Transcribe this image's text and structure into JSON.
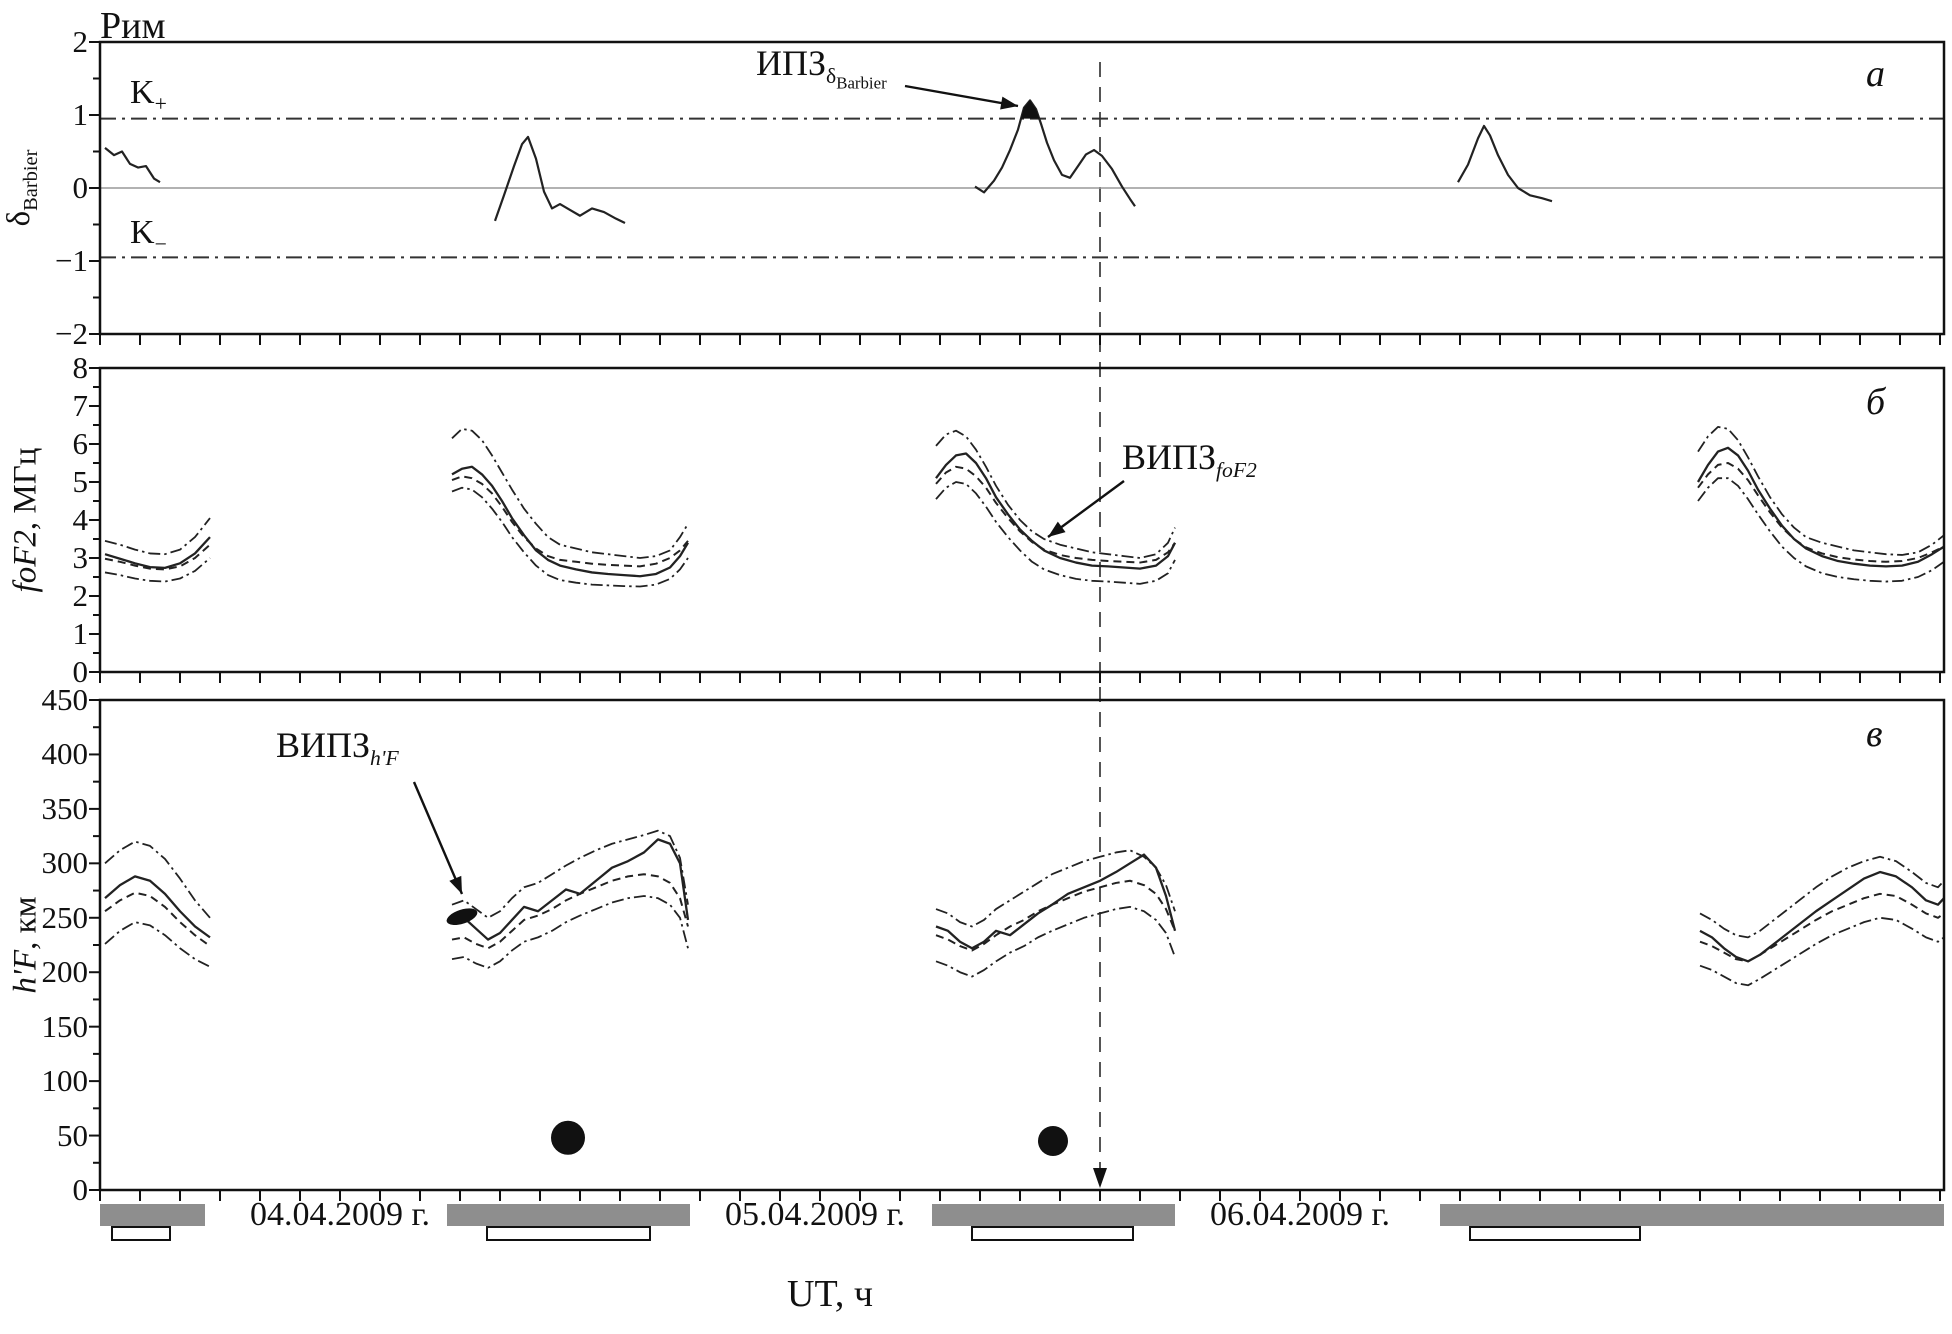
{
  "chart_data": {
    "type": "line",
    "title": "Рим",
    "xlabel": "UT, ч",
    "x_axis": {
      "unit": "часы UT, от 00:00 04.04.2009",
      "range_hours": [
        0,
        92
      ],
      "tick_step_hours": 2,
      "date_labels": [
        {
          "label": "04.04.2009 г.",
          "t_center": 12
        },
        {
          "label": "05.04.2009 г.",
          "t_center": 35.75
        },
        {
          "label": "06.04.2009 г.",
          "t_center": 60
        }
      ]
    },
    "event_marker": {
      "t": 50,
      "style": "vertical-dashed-with-arrow"
    },
    "night_bars": [
      {
        "t0": 0,
        "t1": 5.25
      },
      {
        "t0": 17.35,
        "t1": 29.5
      },
      {
        "t0": 41.6,
        "t1": 53.75
      },
      {
        "t0": 67.0,
        "t1": 92.2
      }
    ],
    "reference_bars": [
      {
        "t0": 0.6,
        "t1": 3.5
      },
      {
        "t0": 19.35,
        "t1": 27.5
      },
      {
        "t0": 43.6,
        "t1": 51.65
      },
      {
        "t0": 68.5,
        "t1": 77.0
      }
    ],
    "panels": {
      "a": {
        "letter": "а",
        "ylabel": {
          "symbol": "δ",
          "sub": "Barbier"
        },
        "ylim": [
          -2,
          2
        ],
        "ytick_step": 1,
        "thresholds": {
          "k_plus": 0.95,
          "k_minus": -0.95,
          "k_plus_label": {
            "base": "K",
            "sub": "+"
          },
          "k_minus_label": {
            "base": "K",
            "sub": "−"
          }
        },
        "annotation": {
          "base": "ИПЗ",
          "sub_symbol": "δ",
          "sub_sub": "Barbier"
        },
        "filled_exceedance_segment": 2,
        "segments": [
          {
            "t": [
              0.25,
              0.7,
              1.1,
              1.5,
              1.9,
              2.3,
              2.7,
              3.0
            ],
            "v": [
              0.55,
              0.45,
              0.5,
              0.33,
              0.28,
              0.3,
              0.13,
              0.08
            ]
          },
          {
            "t": [
              19.75,
              20.2,
              20.7,
              21.1,
              21.4,
              21.8,
              22.2,
              22.6,
              23.0,
              23.5,
              24.0,
              24.6,
              25.2,
              25.8,
              26.25
            ],
            "v": [
              -0.45,
              -0.1,
              0.3,
              0.6,
              0.7,
              0.4,
              -0.05,
              -0.28,
              -0.22,
              -0.3,
              -0.38,
              -0.28,
              -0.33,
              -0.42,
              -0.48
            ]
          },
          {
            "t": [
              43.75,
              44.2,
              44.7,
              45.1,
              45.5,
              45.9,
              46.2,
              46.5,
              46.8,
              47.05,
              47.35,
              47.7,
              48.1,
              48.5,
              48.9,
              49.3,
              49.7,
              50.1,
              50.6,
              51.1,
              51.5,
              51.75
            ],
            "v": [
              0.02,
              -0.06,
              0.1,
              0.28,
              0.52,
              0.8,
              1.1,
              1.2,
              1.08,
              0.88,
              0.62,
              0.38,
              0.18,
              0.14,
              0.3,
              0.46,
              0.52,
              0.44,
              0.26,
              0.02,
              -0.15,
              -0.25
            ]
          },
          {
            "t": [
              67.9,
              68.4,
              68.9,
              69.2,
              69.5,
              69.9,
              70.4,
              70.9,
              71.5,
              72.1,
              72.6
            ],
            "v": [
              0.08,
              0.32,
              0.68,
              0.85,
              0.72,
              0.45,
              0.18,
              0.0,
              -0.1,
              -0.14,
              -0.18
            ]
          }
        ]
      },
      "b": {
        "letter": "б",
        "ylabel": {
          "var": "foF2",
          "unit": ", МГц"
        },
        "ylim": [
          0,
          8
        ],
        "ytick_step": 1,
        "annotation": {
          "base": "ВИПЗ",
          "sub": "foF2"
        },
        "chunks": [
          {
            "t": [
              0.25,
              1.0,
              1.75,
              2.5,
              3.25,
              4.0,
              4.75,
              5.5
            ],
            "upper": [
              3.45,
              3.35,
              3.22,
              3.12,
              3.1,
              3.22,
              3.55,
              4.05
            ],
            "observed": [
              3.1,
              2.98,
              2.86,
              2.76,
              2.74,
              2.86,
              3.12,
              3.55
            ],
            "median": [
              2.98,
              2.9,
              2.8,
              2.72,
              2.7,
              2.78,
              3.0,
              3.35
            ],
            "lower": [
              2.62,
              2.55,
              2.46,
              2.4,
              2.38,
              2.46,
              2.66,
              3.0
            ]
          },
          {
            "t": [
              17.6,
              18.1,
              18.6,
              19.1,
              19.6,
              20.1,
              20.6,
              21.2,
              21.8,
              22.4,
              23.0,
              23.8,
              24.6,
              25.4,
              26.2,
              27.0,
              27.8,
              28.5,
              29.0,
              29.4
            ],
            "upper": [
              6.15,
              6.4,
              6.35,
              6.1,
              5.7,
              5.25,
              4.8,
              4.3,
              3.9,
              3.55,
              3.35,
              3.25,
              3.15,
              3.1,
              3.05,
              3.0,
              3.05,
              3.2,
              3.55,
              3.9
            ],
            "observed": [
              5.2,
              5.35,
              5.4,
              5.2,
              4.9,
              4.5,
              4.05,
              3.6,
              3.2,
              2.95,
              2.8,
              2.7,
              2.62,
              2.58,
              2.55,
              2.52,
              2.58,
              2.75,
              3.05,
              3.4
            ],
            "median": [
              5.05,
              5.15,
              5.1,
              4.95,
              4.7,
              4.35,
              3.95,
              3.55,
              3.25,
              3.05,
              2.95,
              2.9,
              2.85,
              2.82,
              2.8,
              2.78,
              2.85,
              3.0,
              3.2,
              3.45
            ],
            "lower": [
              4.75,
              4.85,
              4.8,
              4.6,
              4.3,
              3.95,
              3.55,
              3.15,
              2.8,
              2.55,
              2.42,
              2.35,
              2.3,
              2.28,
              2.26,
              2.25,
              2.3,
              2.45,
              2.7,
              3.0
            ]
          },
          {
            "t": [
              41.8,
              42.3,
              42.8,
              43.3,
              43.8,
              44.3,
              44.8,
              45.4,
              46.0,
              46.6,
              47.2,
              48.0,
              48.8,
              49.6,
              50.4,
              51.2,
              52.0,
              52.8,
              53.4,
              53.75
            ],
            "upper": [
              5.95,
              6.25,
              6.35,
              6.2,
              5.85,
              5.4,
              4.9,
              4.4,
              4.0,
              3.7,
              3.5,
              3.35,
              3.25,
              3.15,
              3.1,
              3.05,
              3.0,
              3.1,
              3.4,
              3.8
            ],
            "observed": [
              5.1,
              5.45,
              5.7,
              5.75,
              5.5,
              5.1,
              4.6,
              4.15,
              3.75,
              3.45,
              3.2,
              3.0,
              2.88,
              2.8,
              2.78,
              2.75,
              2.72,
              2.8,
              3.05,
              3.4
            ],
            "median": [
              4.95,
              5.25,
              5.4,
              5.35,
              5.15,
              4.85,
              4.45,
              4.05,
              3.7,
              3.42,
              3.22,
              3.08,
              3.0,
              2.95,
              2.92,
              2.9,
              2.88,
              2.95,
              3.15,
              3.4
            ],
            "lower": [
              4.55,
              4.85,
              5.0,
              4.95,
              4.7,
              4.35,
              3.95,
              3.55,
              3.2,
              2.9,
              2.7,
              2.55,
              2.45,
              2.4,
              2.38,
              2.35,
              2.32,
              2.4,
              2.6,
              2.95
            ]
          },
          {
            "t": [
              79.9,
              80.4,
              80.9,
              81.4,
              81.9,
              82.4,
              82.9,
              83.5,
              84.1,
              84.7,
              85.3,
              86.1,
              86.9,
              87.7,
              88.5,
              89.3,
              90.1,
              90.9,
              91.6,
              92.2
            ],
            "upper": [
              5.8,
              6.2,
              6.45,
              6.4,
              6.1,
              5.65,
              5.15,
              4.6,
              4.15,
              3.8,
              3.55,
              3.4,
              3.3,
              3.2,
              3.15,
              3.1,
              3.08,
              3.15,
              3.35,
              3.6
            ],
            "observed": [
              5.0,
              5.45,
              5.8,
              5.9,
              5.7,
              5.3,
              4.8,
              4.3,
              3.85,
              3.5,
              3.25,
              3.05,
              2.92,
              2.85,
              2.8,
              2.78,
              2.8,
              2.9,
              3.1,
              3.3
            ],
            "median": [
              4.85,
              5.2,
              5.45,
              5.5,
              5.35,
              5.05,
              4.65,
              4.2,
              3.8,
              3.5,
              3.28,
              3.12,
              3.02,
              2.96,
              2.92,
              2.9,
              2.92,
              3.0,
              3.15,
              3.3
            ],
            "lower": [
              4.5,
              4.85,
              5.1,
              5.1,
              4.9,
              4.55,
              4.15,
              3.7,
              3.3,
              3.0,
              2.78,
              2.6,
              2.5,
              2.44,
              2.4,
              2.38,
              2.4,
              2.5,
              2.68,
              2.9
            ]
          }
        ]
      },
      "c": {
        "letter": "в",
        "ylabel": {
          "var": "h'F",
          "unit": ", км"
        },
        "ylim": [
          0,
          450
        ],
        "ytick_step": 50,
        "annotation": {
          "base": "ВИПЗ",
          "sub": "h'F"
        },
        "highlight_blob": {
          "t": 18.1,
          "value": 251
        },
        "moon_symbols": [
          {
            "t": 23.4,
            "value": 48
          },
          {
            "t": 47.65,
            "value": 45
          }
        ],
        "chunks": [
          {
            "t": [
              0.25,
              1.0,
              1.75,
              2.5,
              3.25,
              4.0,
              4.75,
              5.5
            ],
            "upper": [
              300,
              312,
              320,
              316,
              304,
              286,
              266,
              250
            ],
            "observed": [
              268,
              280,
              288,
              284,
              272,
              256,
              242,
              232
            ],
            "median": [
              256,
              266,
              273,
              270,
              260,
              246,
              234,
              224
            ],
            "lower": [
              226,
              238,
              246,
              243,
              234,
              222,
              212,
              205
            ]
          },
          {
            "t": [
              17.6,
              18.2,
              18.8,
              19.4,
              20.0,
              20.6,
              21.2,
              21.9,
              22.6,
              23.3,
              24.0,
              24.8,
              25.6,
              26.4,
              27.2,
              27.9,
              28.5,
              29.0,
              29.4
            ],
            "upper": [
              262,
              266,
              258,
              250,
              256,
              268,
              278,
              282,
              290,
              298,
              305,
              312,
              318,
              322,
              326,
              330,
              325,
              305,
              262
            ],
            "observed": [
              246,
              250,
              240,
              230,
              236,
              248,
              260,
              256,
              266,
              276,
              272,
              284,
              296,
              302,
              310,
              322,
              318,
              300,
              248
            ],
            "median": [
              230,
              232,
              226,
              222,
              228,
              238,
              248,
              252,
              258,
              266,
              272,
              278,
              284,
              288,
              290,
              288,
              282,
              268,
              242
            ],
            "lower": [
              212,
              214,
              208,
              204,
              210,
              220,
              228,
              232,
              238,
              246,
              252,
              258,
              264,
              268,
              270,
              268,
              262,
              250,
              222
            ]
          },
          {
            "t": [
              41.8,
              42.4,
              43.0,
              43.6,
              44.2,
              44.8,
              45.5,
              46.2,
              46.9,
              47.6,
              48.4,
              49.2,
              50.0,
              50.8,
              51.5,
              52.2,
              52.8,
              53.3,
              53.75
            ],
            "upper": [
              258,
              254,
              246,
              242,
              248,
              258,
              266,
              274,
              282,
              290,
              296,
              302,
              306,
              310,
              312,
              306,
              296,
              280,
              256
            ],
            "observed": [
              242,
              238,
              228,
              222,
              228,
              238,
              234,
              244,
              254,
              262,
              272,
              278,
              284,
              292,
              300,
              308,
              296,
              270,
              238
            ],
            "median": [
              234,
              230,
              224,
              220,
              226,
              234,
              242,
              248,
              256,
              262,
              268,
              274,
              278,
              282,
              284,
              280,
              272,
              258,
              238
            ],
            "lower": [
              210,
              206,
              200,
              196,
              202,
              210,
              218,
              224,
              232,
              238,
              244,
              250,
              254,
              258,
              260,
              256,
              248,
              236,
              214
            ]
          },
          {
            "t": [
              80.0,
              80.6,
              81.2,
              81.8,
              82.4,
              83.0,
              83.7,
              84.4,
              85.1,
              85.8,
              86.6,
              87.4,
              88.2,
              89.0,
              89.8,
              90.6,
              91.3,
              91.9,
              92.2
            ],
            "upper": [
              254,
              248,
              240,
              234,
              232,
              238,
              248,
              258,
              268,
              278,
              288,
              296,
              302,
              306,
              302,
              292,
              282,
              278,
              284
            ],
            "observed": [
              238,
              232,
              222,
              214,
              210,
              216,
              226,
              236,
              246,
              256,
              266,
              276,
              286,
              292,
              288,
              278,
              266,
              262,
              268
            ],
            "median": [
              228,
              224,
              218,
              212,
              210,
              216,
              224,
              232,
              240,
              248,
              256,
              262,
              268,
              272,
              270,
              262,
              254,
              250,
              254
            ],
            "lower": [
              206,
              202,
              196,
              190,
              188,
              194,
              202,
              210,
              218,
              226,
              234,
              240,
              246,
              250,
              248,
              240,
              232,
              228,
              232
            ]
          }
        ]
      }
    },
    "colors": {
      "line": "#222222",
      "night_bar": "#8e8e8e",
      "fill": "#111111"
    }
  }
}
